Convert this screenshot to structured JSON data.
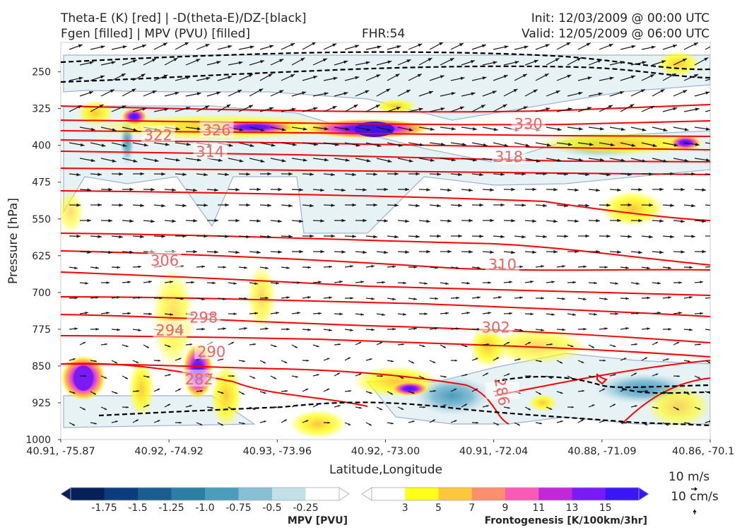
{
  "header": {
    "title_left_1": "Theta-E (K) [red] | -D(theta-E)/DZ-[black]",
    "title_left_2": "Fgen [filled] | MPV (PVU) [filled]",
    "fhr": "FHR:54",
    "init": "Init: 12/03/2009 @ 00:00 UTC",
    "valid": "Valid: 12/05/2009 @ 06:00 UTC"
  },
  "colors": {
    "theta_e": "#ff0000",
    "theta_e_labels": "#f26060",
    "mpv_contour": "#9aaed0",
    "dthetae_dz": "#000000",
    "wind_vectors": "#1a1a1a"
  },
  "chart_data": {
    "type": "cross-section",
    "xlabel": "Latitude,Longitude",
    "ylabel": "Pressure [hPa]",
    "x_ticks": [
      "40.91, -75.87",
      "40.92, -74.92",
      "40.93, -73.96",
      "40.92, -73.00",
      "40.91, -72.04",
      "40.88, -71.09",
      "40.86, -70.1"
    ],
    "y_ticks": [
      250,
      325,
      400,
      475,
      550,
      625,
      700,
      775,
      850,
      925,
      1000
    ],
    "ylim": [
      1000,
      190
    ],
    "theta_e_labels": [
      {
        "text": "330",
        "x": 0.72,
        "p": 355
      },
      {
        "text": "326",
        "x": 0.24,
        "p": 368
      },
      {
        "text": "322",
        "x": 0.15,
        "p": 378
      },
      {
        "text": "314",
        "x": 0.23,
        "p": 412
      },
      {
        "text": "318",
        "x": 0.69,
        "p": 422
      },
      {
        "text": "306",
        "x": 0.16,
        "p": 634
      },
      {
        "text": "310",
        "x": 0.68,
        "p": 642
      },
      {
        "text": "298",
        "x": 0.22,
        "p": 750
      },
      {
        "text": "302",
        "x": 0.67,
        "p": 770
      },
      {
        "text": "294",
        "x": 0.168,
        "p": 776
      },
      {
        "text": "290",
        "x": 0.232,
        "p": 820
      },
      {
        "text": "282",
        "x": 0.213,
        "p": 876
      },
      {
        "text": "286",
        "x": 0.68,
        "p": 902
      }
    ],
    "vector_key": [
      "10 m/s",
      "10 cm/s"
    ],
    "colorbars": [
      {
        "label": "MPV [PVU]",
        "ticks": [
          "-1.75",
          "-1.5",
          "-1.25",
          "-1.0",
          "-0.75",
          "-0.5",
          "-0.25"
        ],
        "colors": [
          "#08205a",
          "#0b3d7e",
          "#1a5e91",
          "#2b7fa6",
          "#4a9dbd",
          "#86bfd6",
          "#c3e0e8",
          "#ffffff"
        ]
      },
      {
        "label": "Frontogenesis [K/100km/3hr]",
        "ticks": [
          "3",
          "5",
          "7",
          "9",
          "11",
          "13",
          "15"
        ],
        "colors": [
          "#ffffff",
          "#ffff1a",
          "#fcc63d",
          "#fb8f6e",
          "#f95ab6",
          "#c129d8",
          "#7a1af4",
          "#3a16f6"
        ]
      }
    ]
  }
}
